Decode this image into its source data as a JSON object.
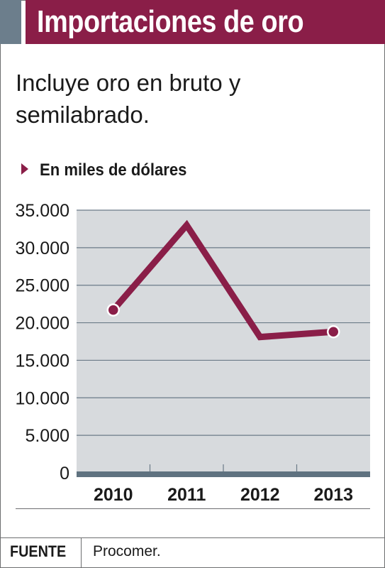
{
  "header": {
    "title": "Importaciones de oro"
  },
  "subtitle": "Incluye oro en bruto y semilabrado.",
  "unit_label": "En miles de dólares",
  "footer": {
    "label": "FUENTE",
    "source": "Procomer."
  },
  "colors": {
    "title_bar": "#8a1e48",
    "accent_bar": "#6c7e8c",
    "plot_background": "#d7dadd",
    "gridline": "#6b7b88",
    "series_line": "#8a1e48",
    "baseline": "#5f7280"
  },
  "chart_data": {
    "type": "line",
    "categories": [
      "2010",
      "2011",
      "2012",
      "2013"
    ],
    "series": [
      {
        "values": [
          21700,
          33000,
          18100,
          18800
        ]
      }
    ],
    "ylim": [
      0,
      35000
    ],
    "yticks": [
      0,
      5000,
      10000,
      15000,
      20000,
      25000,
      30000,
      35000
    ],
    "ytick_labels": [
      "0",
      "5.000",
      "10.000",
      "15.000",
      "20.000",
      "25.000",
      "30.000",
      "35.000"
    ],
    "grid": true,
    "markers_on": [
      "2010",
      "2013"
    ]
  }
}
